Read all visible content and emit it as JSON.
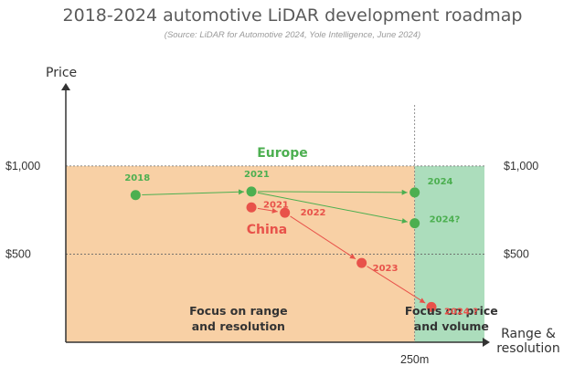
{
  "chart_data": {
    "type": "scatter",
    "title": "2018-2024 automotive LiDAR development roadmap",
    "subtitle": "(Source: LiDAR for Automotive 2024, Yole Intelligence, June 2024)",
    "ylabel": "Price",
    "xlabel": [
      "Range &",
      "resolution"
    ],
    "x_ticks": [
      {
        "value": 250,
        "label": "250m"
      }
    ],
    "y_ticks": [
      {
        "value": 1000,
        "label": "$1,000"
      },
      {
        "value": 500,
        "label": "$500"
      }
    ],
    "xlim": [
      0,
      300
    ],
    "ylim": [
      0,
      1450
    ],
    "regions": [
      {
        "name": "range",
        "from": 0,
        "to": 250,
        "ymax": 1000,
        "color": "#f8cda0",
        "label": [
          "Focus on range",
          "and resolution"
        ]
      },
      {
        "name": "price",
        "from": 250,
        "to": 300,
        "ymax": 1000,
        "color": "#a8dbb8",
        "label": [
          "Focus on price",
          "and volume"
        ]
      }
    ],
    "series": [
      {
        "name": "Europe",
        "color": "#4caf50",
        "points": [
          {
            "x": 50,
            "y": 835,
            "label": "2018"
          },
          {
            "x": 133,
            "y": 855,
            "label": "2021"
          },
          {
            "x": 250,
            "y": 850,
            "label": "2024"
          },
          {
            "x": 250,
            "y": 675,
            "label": "2024?"
          }
        ],
        "paths": [
          [
            0,
            1,
            2
          ],
          [
            1,
            3
          ]
        ]
      },
      {
        "name": "China",
        "color": "#e8524a",
        "points": [
          {
            "x": 133,
            "y": 765,
            "label": "2021"
          },
          {
            "x": 157,
            "y": 735,
            "label": "2022"
          },
          {
            "x": 212,
            "y": 450,
            "label": "2023"
          },
          {
            "x": 262,
            "y": 200,
            "label": "2024 ?"
          }
        ],
        "paths": [
          [
            0,
            1,
            2,
            3
          ]
        ]
      }
    ]
  }
}
